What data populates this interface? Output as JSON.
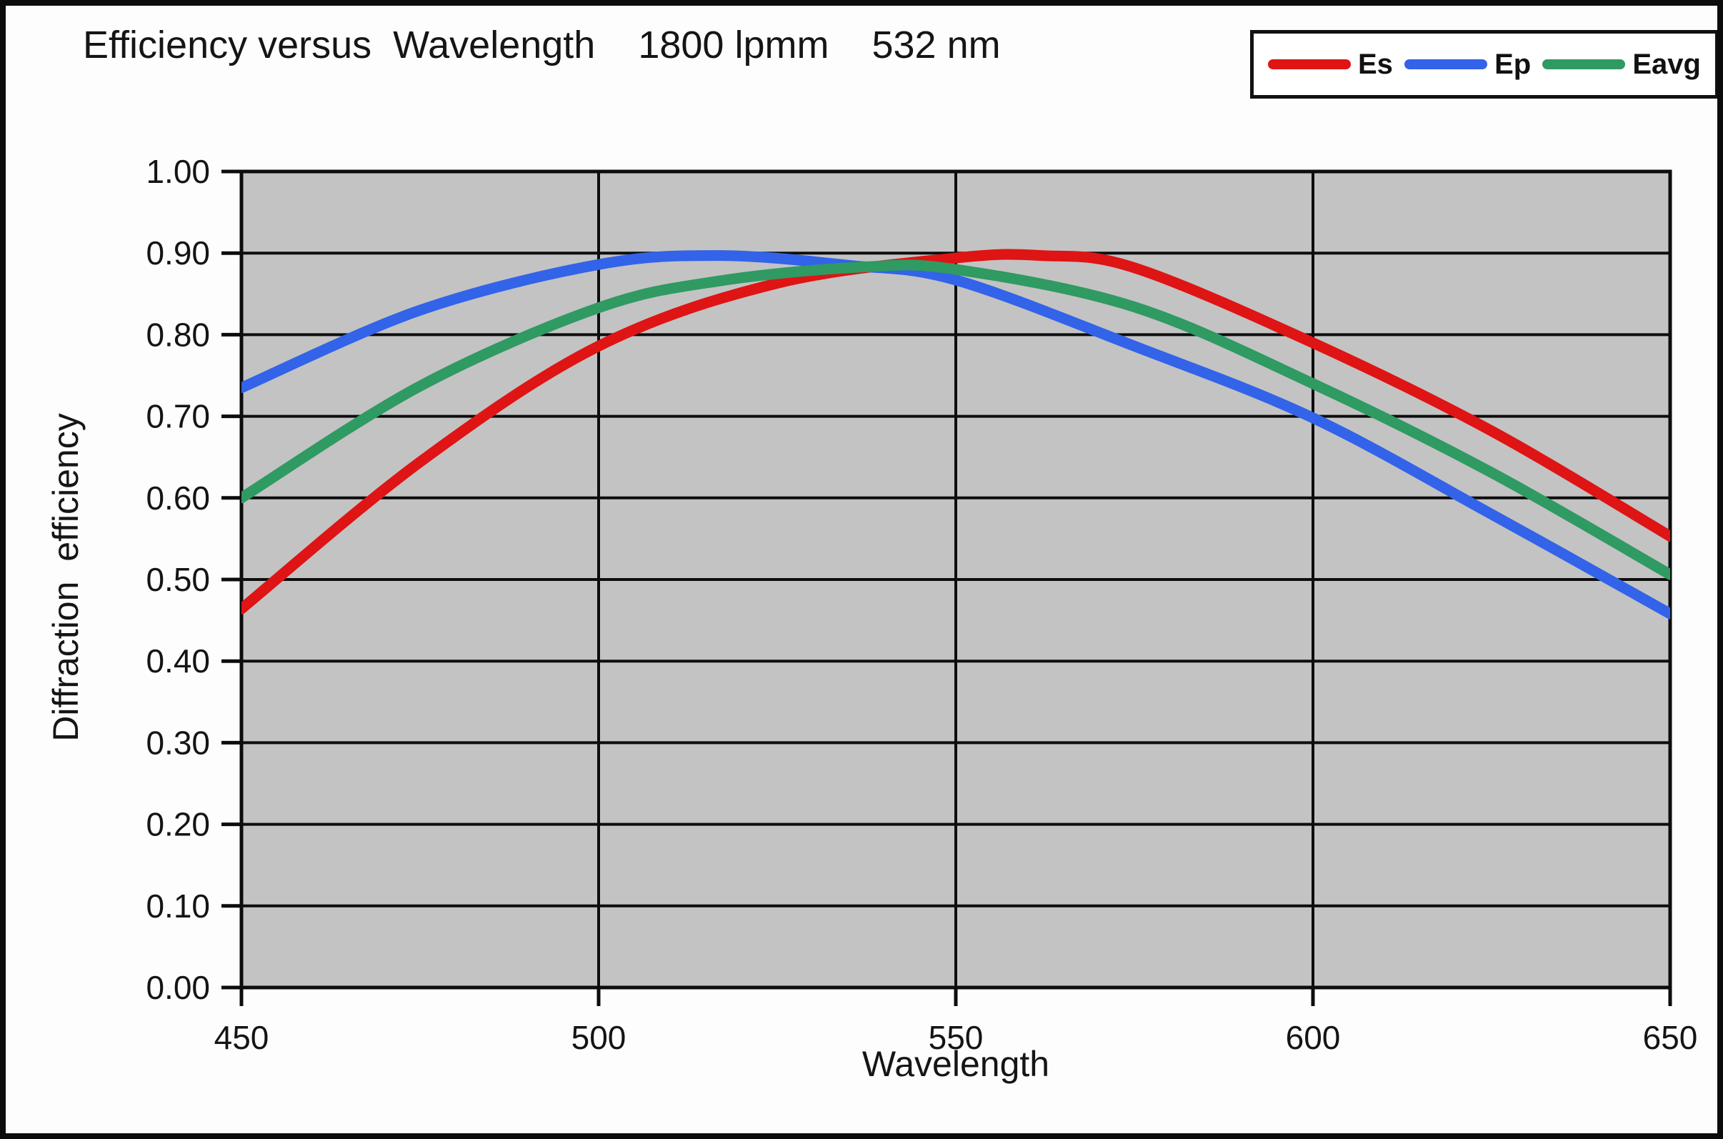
{
  "title": "Efficiency versus  Wavelength    1800 lpmm    532 nm",
  "legend": {
    "items": [
      {
        "label": "Es",
        "color": "#df1414"
      },
      {
        "label": "Ep",
        "color": "#3263e8"
      },
      {
        "label": "Eavg",
        "color": "#2f9a62"
      }
    ]
  },
  "chart_data": {
    "type": "line",
    "title": "Efficiency versus Wavelength 1800 lpmm 532 nm",
    "xlabel": "Wavelength",
    "ylabel": "Diffraction  efficiency",
    "xlim": [
      450,
      650
    ],
    "ylim": [
      0.0,
      1.0
    ],
    "x_ticks": [
      450,
      500,
      550,
      600,
      650
    ],
    "y_ticks": [
      "1.00",
      "0.90",
      "0.80",
      "0.70",
      "0.60",
      "0.50",
      "0.40",
      "0.30",
      "0.20",
      "0.10",
      "0.00"
    ],
    "grid": true,
    "plot_background": "#c3c3c3",
    "gridline_color": "#0d0d0d",
    "legend_position": "top-right",
    "series": [
      {
        "name": "Es",
        "color": "#df1414",
        "points": [
          [
            450,
            0.464
          ],
          [
            475,
            0.644
          ],
          [
            500,
            0.786
          ],
          [
            525,
            0.863
          ],
          [
            550,
            0.894
          ],
          [
            562,
            0.897
          ],
          [
            575,
            0.882
          ],
          [
            600,
            0.79
          ],
          [
            625,
            0.682
          ],
          [
            650,
            0.553
          ]
        ]
      },
      {
        "name": "Ep",
        "color": "#3263e8",
        "points": [
          [
            450,
            0.735
          ],
          [
            475,
            0.83
          ],
          [
            500,
            0.886
          ],
          [
            517,
            0.897
          ],
          [
            535,
            0.885
          ],
          [
            550,
            0.867
          ],
          [
            575,
            0.786
          ],
          [
            600,
            0.698
          ],
          [
            625,
            0.58
          ],
          [
            650,
            0.458
          ]
        ]
      },
      {
        "name": "Eavg",
        "color": "#2f9a62",
        "points": [
          [
            450,
            0.6
          ],
          [
            475,
            0.737
          ],
          [
            500,
            0.833
          ],
          [
            517,
            0.866
          ],
          [
            537,
            0.883
          ],
          [
            550,
            0.88
          ],
          [
            575,
            0.834
          ],
          [
            600,
            0.74
          ],
          [
            625,
            0.631
          ],
          [
            650,
            0.506
          ]
        ]
      }
    ]
  }
}
